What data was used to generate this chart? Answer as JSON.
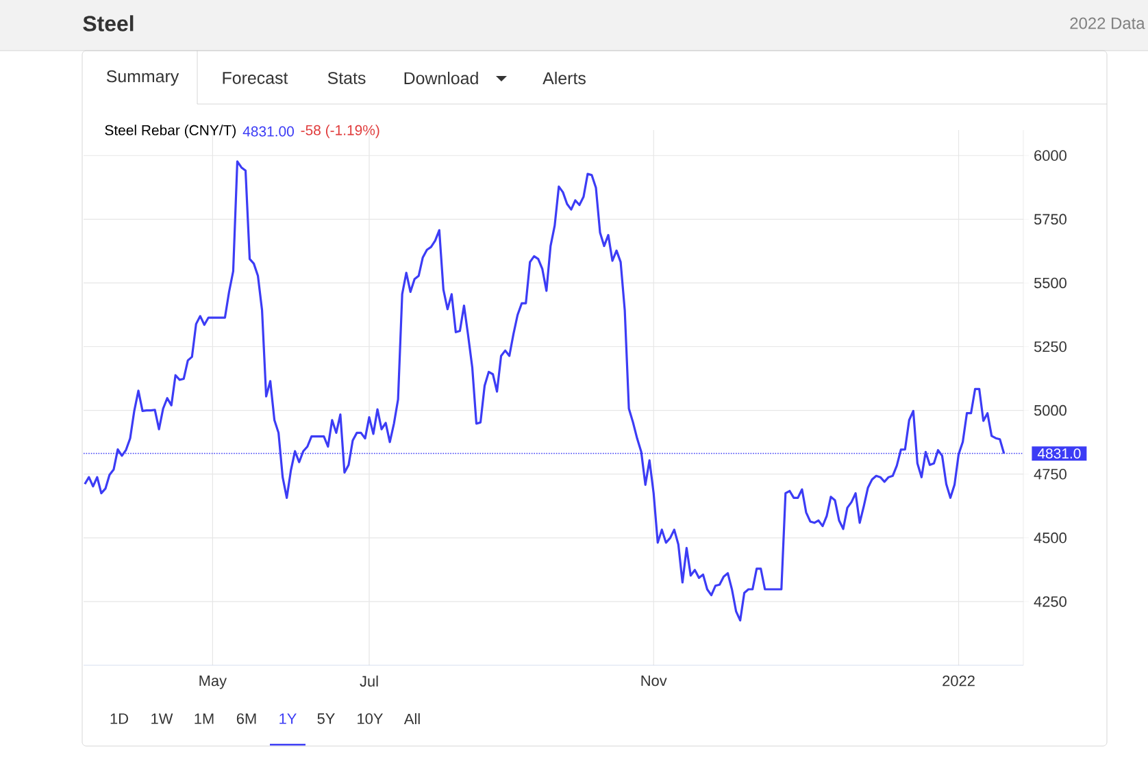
{
  "chart_data": {
    "type": "line",
    "title": "Steel",
    "subtitle": "Steel Rebar (CNY/T)",
    "annotations": [
      "2022 Data",
      "4831.00",
      "-58 (-1.19%)",
      "Summary",
      "Forecast",
      "Stats",
      "Download",
      "Alerts",
      "1D",
      "1W",
      "1M",
      "6M",
      "1Y",
      "5Y",
      "10Y",
      "All"
    ],
    "categories": [
      null,
      null,
      null,
      null,
      null,
      null,
      null,
      null,
      null,
      null,
      null,
      null,
      null,
      null,
      null,
      null,
      null,
      null,
      null,
      null,
      null,
      null,
      null,
      null,
      null,
      null,
      null,
      null,
      null,
      null,
      null,
      "May",
      null,
      null,
      null,
      null,
      null,
      null,
      null,
      null,
      null,
      null,
      null,
      null,
      null,
      null,
      null,
      null,
      null,
      null,
      null,
      null,
      null,
      null,
      null,
      null,
      null,
      null,
      null,
      null,
      null,
      null,
      null,
      null,
      null,
      null,
      null,
      null,
      null,
      "Jul",
      null,
      null,
      null,
      null,
      null,
      null,
      null,
      null,
      null,
      null,
      null,
      null,
      null,
      null,
      null,
      null,
      null,
      null,
      null,
      null,
      null,
      null,
      null,
      null,
      null,
      null,
      null,
      null,
      null,
      null,
      null,
      null,
      null,
      null,
      null,
      null,
      null,
      null,
      null,
      null,
      null,
      null,
      null,
      null,
      null,
      null,
      null,
      null,
      null,
      null,
      null,
      null,
      null,
      null,
      null,
      null,
      null,
      null,
      null,
      null,
      null,
      null,
      null,
      null,
      null,
      null,
      null,
      null,
      "Nov",
      null,
      null,
      null,
      null,
      null,
      null,
      null,
      null,
      null,
      null,
      null,
      null,
      null,
      null,
      null,
      null,
      null,
      null,
      null,
      null,
      null,
      null,
      null,
      null,
      null,
      null,
      null,
      null,
      null,
      null,
      null,
      null,
      null,
      null,
      null,
      null,
      null,
      null,
      null,
      null,
      null,
      null,
      null,
      null,
      null,
      null,
      null,
      null,
      null,
      null,
      null,
      null,
      null,
      null,
      null,
      null,
      null,
      null,
      null,
      null,
      null,
      null,
      null,
      null,
      null,
      null,
      null,
      null,
      null,
      null,
      null,
      null,
      null,
      "2022",
      null,
      null,
      null,
      null,
      null,
      null,
      null,
      null,
      null,
      null,
      null
    ],
    "ylim": [
      4000,
      6100
    ],
    "yticks": [
      4250,
      4500,
      4750,
      5000,
      5250,
      5500,
      5750,
      6000
    ],
    "grid": true,
    "ref_lines": [
      {
        "axis": "y",
        "value": 4831,
        "label": "4831.0",
        "color": "#3c3cf5",
        "line_style": "dotted"
      }
    ],
    "series": [
      {
        "color": "#3c3cf5",
        "values": [
          4711,
          4738,
          4702,
          4738,
          4675,
          4693,
          4747,
          4768,
          4847,
          4822,
          4845,
          4890,
          4998,
          5077,
          4998,
          5000,
          5000,
          5002,
          4926,
          5007,
          5048,
          5020,
          5138,
          5120,
          5124,
          5196,
          5210,
          5339,
          5370,
          5336,
          5364,
          5364,
          5364,
          5364,
          5364,
          5465,
          5546,
          5977,
          5953,
          5941,
          5594,
          5576,
          5528,
          5393,
          5055,
          5115,
          4962,
          4912,
          4738,
          4657,
          4765,
          4840,
          4797,
          4840,
          4858,
          4898,
          4898,
          4898,
          4898,
          4858,
          4962,
          4912,
          4984,
          4756,
          4786,
          4882,
          4912,
          4912,
          4890,
          4973,
          4908,
          5004,
          4926,
          4951,
          4876,
          4948,
          5043,
          5456,
          5540,
          5465,
          5515,
          5528,
          5600,
          5630,
          5641,
          5666,
          5707,
          5474,
          5397,
          5456,
          5307,
          5312,
          5411,
          5294,
          5169,
          4948,
          4953,
          5097,
          5151,
          5142,
          5074,
          5214,
          5235,
          5214,
          5300,
          5375,
          5420,
          5420,
          5582,
          5605,
          5594,
          5555,
          5469,
          5645,
          5725,
          5878,
          5856,
          5810,
          5788,
          5824,
          5806,
          5838,
          5928,
          5923,
          5874,
          5698,
          5645,
          5688,
          5587,
          5627,
          5582,
          5393,
          5007,
          4953,
          4890,
          4837,
          4708,
          4804,
          4675,
          4481,
          4532,
          4481,
          4499,
          4532,
          4474,
          4325,
          4460,
          4352,
          4374,
          4343,
          4356,
          4298,
          4275,
          4312,
          4316,
          4348,
          4361,
          4298,
          4212,
          4176,
          4284,
          4298,
          4298,
          4379,
          4379,
          4298,
          4298,
          4298,
          4298,
          4298,
          4675,
          4684,
          4657,
          4657,
          4690,
          4600,
          4564,
          4559,
          4568,
          4546,
          4586,
          4661,
          4647,
          4568,
          4535,
          4618,
          4640,
          4675,
          4559,
          4625,
          4697,
          4729,
          4743,
          4738,
          4720,
          4738,
          4743,
          4783,
          4846,
          4847,
          4962,
          4998,
          4792,
          4738,
          4837,
          4786,
          4792,
          4844,
          4822,
          4711,
          4657,
          4708,
          4828,
          4876,
          4989,
          4989,
          5084,
          5084,
          4959,
          4989,
          4900,
          4891,
          4887,
          4831
        ]
      }
    ]
  }
}
